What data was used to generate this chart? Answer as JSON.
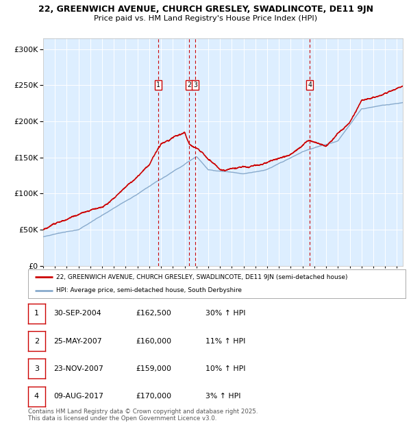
{
  "title_line1": "22, GREENWICH AVENUE, CHURCH GRESLEY, SWADLINCOTE, DE11 9JN",
  "title_line2": "Price paid vs. HM Land Registry's House Price Index (HPI)",
  "ylabel_values": [
    0,
    50000,
    100000,
    150000,
    200000,
    250000,
    300000
  ],
  "ylim": [
    0,
    315000
  ],
  "xlim_start": 1995.0,
  "xlim_end": 2025.5,
  "background_color": "#ddeeff",
  "grid_color": "#ffffff",
  "line1_color": "#cc0000",
  "line2_color": "#88aacc",
  "transactions": [
    {
      "date_x": 2004.75,
      "price": 162500,
      "label": "1"
    },
    {
      "date_x": 2007.39,
      "price": 160000,
      "label": "2"
    },
    {
      "date_x": 2007.89,
      "price": 159000,
      "label": "3"
    },
    {
      "date_x": 2017.6,
      "price": 170000,
      "label": "4"
    }
  ],
  "legend_line1": "22, GREENWICH AVENUE, CHURCH GRESLEY, SWADLINCOTE, DE11 9JN (semi-detached house)",
  "legend_line2": "HPI: Average price, semi-detached house, South Derbyshire",
  "table_rows": [
    [
      "1",
      "30-SEP-2004",
      "£162,500",
      "30% ↑ HPI"
    ],
    [
      "2",
      "25-MAY-2007",
      "£160,000",
      "11% ↑ HPI"
    ],
    [
      "3",
      "23-NOV-2007",
      "£159,000",
      "10% ↑ HPI"
    ],
    [
      "4",
      "09-AUG-2017",
      "£170,000",
      "3% ↑ HPI"
    ]
  ],
  "footer": "Contains HM Land Registry data © Crown copyright and database right 2025.\nThis data is licensed under the Open Government Licence v3.0."
}
